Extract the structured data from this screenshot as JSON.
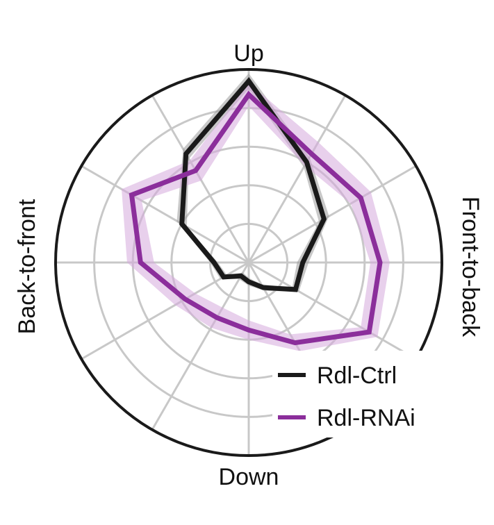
{
  "chart_data": {
    "type": "polar-line",
    "direction_labels": {
      "top": "Up",
      "bottom": "Down",
      "left": "Back-to-front",
      "right": "Front-to-back"
    },
    "angles_deg": [
      0,
      30,
      60,
      90,
      120,
      150,
      180,
      210,
      240,
      270,
      300,
      330
    ],
    "radial_max": 1.0,
    "rings": [
      0.2,
      0.4,
      0.6,
      0.8
    ],
    "spokes_deg": [
      0,
      30,
      60,
      90,
      120,
      150,
      180,
      210,
      240,
      270,
      300,
      330
    ],
    "legend_position": "bottom-right",
    "series": [
      {
        "name": "Rdl-Ctrl",
        "color": "#1a1a1a",
        "band_color": "#9a9a9a",
        "values": [
          0.28,
          0.45,
          0.6,
          0.94,
          0.65,
          0.4,
          0.18,
          0.15,
          0.08,
          0.1,
          0.15,
          0.28
        ],
        "band": [
          0.03,
          0.03,
          0.03,
          0.04,
          0.03,
          0.03,
          0.02,
          0.02,
          0.02,
          0.02,
          0.02,
          0.02
        ]
      },
      {
        "name": "Rdl-RNAi",
        "color": "#8b2e9b",
        "band_color": "#d6a9dd",
        "values": [
          0.68,
          0.67,
          0.65,
          0.87,
          0.55,
          0.7,
          0.56,
          0.38,
          0.33,
          0.35,
          0.48,
          0.72
        ],
        "band": [
          0.05,
          0.06,
          0.07,
          0.06,
          0.06,
          0.06,
          0.07,
          0.06,
          0.06,
          0.05,
          0.05,
          0.05
        ]
      }
    ]
  }
}
